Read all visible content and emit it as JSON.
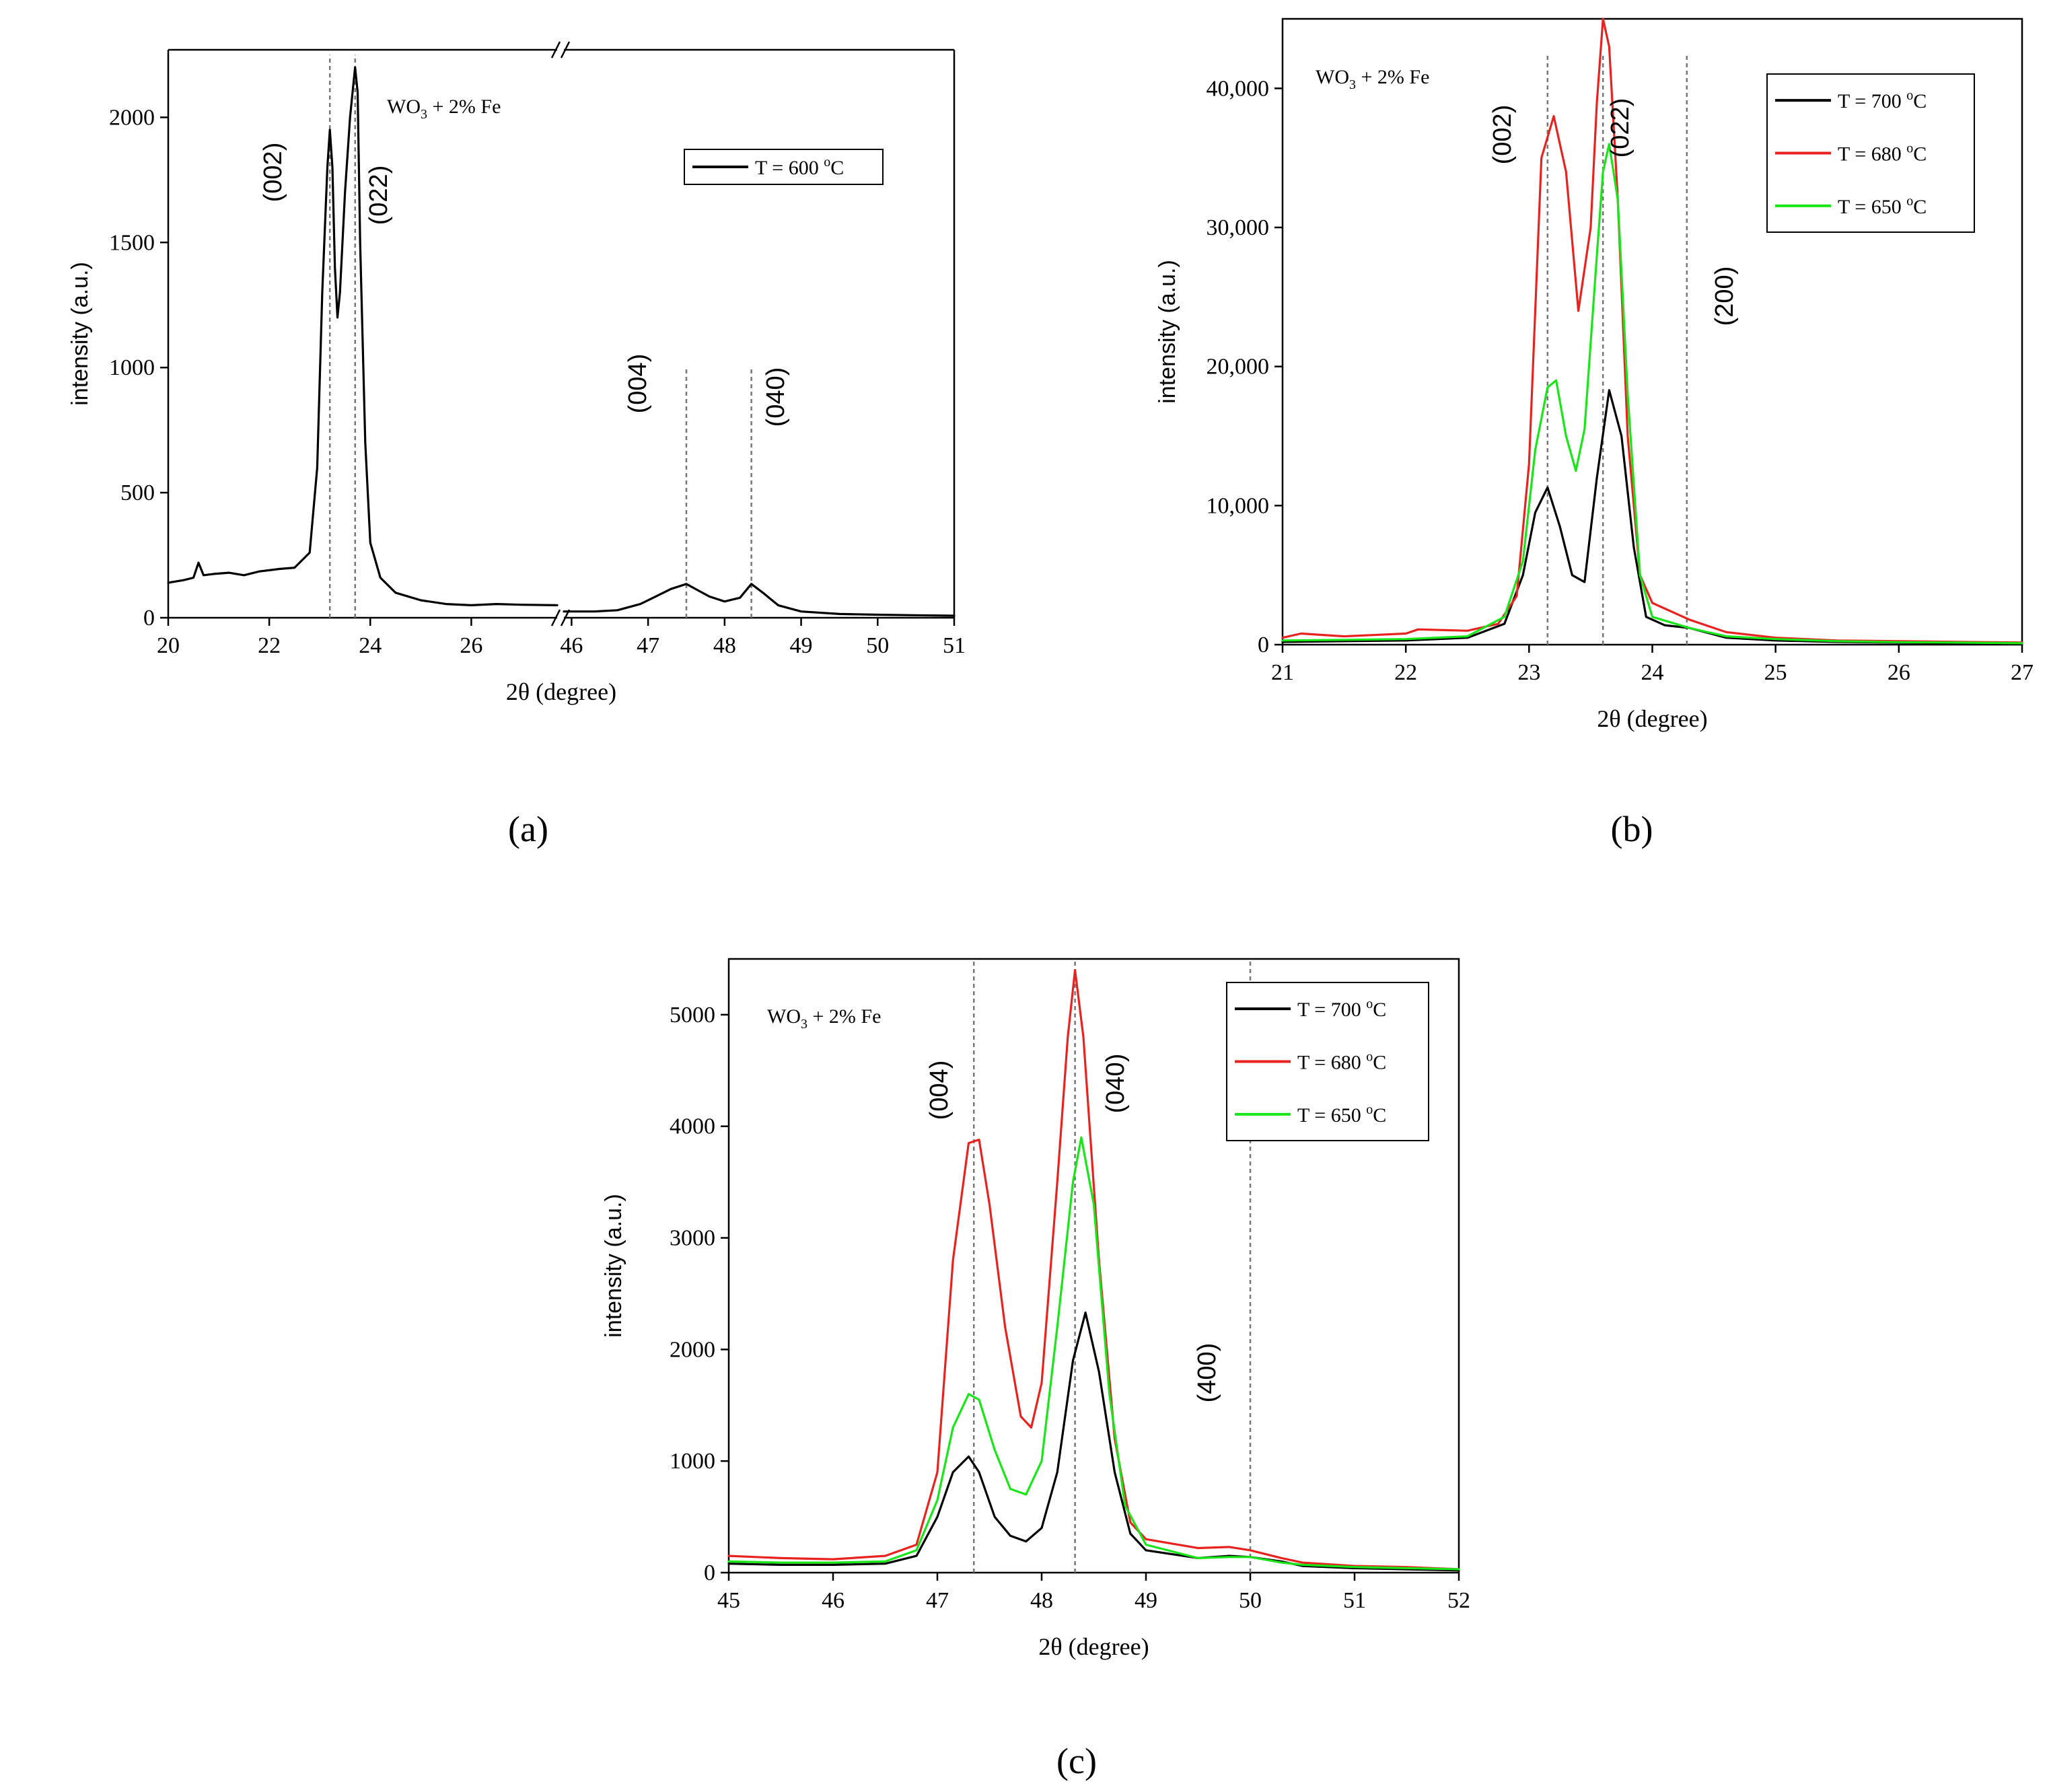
{
  "panel_labels": [
    "(a)",
    "(b)",
    "(c)"
  ],
  "colors": {
    "black": "#000000",
    "red": "#e8231f",
    "green": "#19e619",
    "ref": "#777777"
  },
  "chart_data": [
    {
      "id": "a",
      "type": "line",
      "title": "",
      "xlabel": "2θ (degree)",
      "ylabel": "intensity (a.u.)",
      "annotation": "WO3 + 2% Fe",
      "annotation_main": "WO",
      "annotation_sub": "3",
      "annotation_rest": " + 2% Fe",
      "broken_axis": true,
      "segments": [
        {
          "xlim": [
            20,
            27.7
          ],
          "ticks": [
            "20",
            "22",
            "24",
            "26"
          ],
          "tick_values": [
            20,
            22,
            24,
            26
          ]
        },
        {
          "xlim": [
            45.9,
            51
          ],
          "ticks": [
            "46",
            "47",
            "48",
            "49",
            "50",
            "51"
          ],
          "tick_values": [
            46,
            47,
            48,
            49,
            50,
            51
          ]
        }
      ],
      "ylim": [
        0,
        2270
      ],
      "yticks": [
        "0",
        "500",
        "1000",
        "1500",
        "2000"
      ],
      "ytick_values": [
        0,
        500,
        1000,
        1500,
        2000
      ],
      "legend": [
        {
          "label": "T = 600 °C",
          "main": "T = 600 ",
          "sup": "o",
          "unit": "C",
          "color": "#000000"
        }
      ],
      "reference_lines": [
        {
          "x": 23.2,
          "label": "(002)",
          "top": 2250
        },
        {
          "x": 23.7,
          "label": "(022)",
          "top": 2250
        },
        {
          "x": 47.5,
          "label": "(004)",
          "top": 1000
        },
        {
          "x": 48.35,
          "label": "(040)",
          "top": 1000
        }
      ],
      "series": [
        {
          "name": "T = 600 °C",
          "color": "#000000",
          "x": [
            20.0,
            20.3,
            20.5,
            20.6,
            20.7,
            20.9,
            21.2,
            21.5,
            21.8,
            22.0,
            22.2,
            22.5,
            22.8,
            22.95,
            23.05,
            23.15,
            23.2,
            23.25,
            23.3,
            23.35,
            23.4,
            23.5,
            23.6,
            23.7,
            23.75,
            23.8,
            23.9,
            24.0,
            24.2,
            24.5,
            25.0,
            25.5,
            26.0,
            26.5,
            27.0,
            27.7,
            45.9,
            46.3,
            46.6,
            46.9,
            47.1,
            47.3,
            47.5,
            47.65,
            47.8,
            48.0,
            48.2,
            48.35,
            48.5,
            48.7,
            49.0,
            49.5,
            50.0,
            50.5,
            51.0
          ],
          "y": [
            140,
            150,
            160,
            220,
            170,
            175,
            180,
            170,
            185,
            190,
            195,
            200,
            260,
            600,
            1300,
            1800,
            1950,
            1800,
            1400,
            1200,
            1300,
            1700,
            2000,
            2200,
            2100,
            1500,
            700,
            300,
            160,
            100,
            70,
            55,
            50,
            55,
            52,
            50,
            25,
            25,
            30,
            55,
            85,
            115,
            135,
            110,
            85,
            65,
            80,
            135,
            100,
            50,
            25,
            15,
            12,
            10,
            8
          ]
        }
      ]
    },
    {
      "id": "b",
      "type": "line",
      "title": "",
      "xlabel": "2θ (degree)",
      "ylabel": "intensity (a.u.)",
      "annotation": "WO3 + 2% Fe",
      "annotation_main": "WO",
      "annotation_sub": "3",
      "annotation_rest": " + 2% Fe",
      "xlim": [
        21,
        27
      ],
      "ylim": [
        0,
        45000
      ],
      "xticks": [
        "21",
        "22",
        "23",
        "24",
        "25",
        "26",
        "27"
      ],
      "xtick_values": [
        21,
        22,
        23,
        24,
        25,
        26,
        27
      ],
      "yticks": [
        "0",
        "10,000",
        "20,000",
        "30,000",
        "40,000"
      ],
      "ytick_values": [
        0,
        10000,
        20000,
        30000,
        40000
      ],
      "legend": [
        {
          "label": "T = 700 °C",
          "main": "T = 700 ",
          "sup": "o",
          "unit": "C",
          "color": "#000000"
        },
        {
          "label": "T = 680 °C",
          "main": "T = 680 ",
          "sup": "o",
          "unit": "C",
          "color": "#e8231f"
        },
        {
          "label": "T = 650 °C",
          "main": "T = 650 ",
          "sup": "o",
          "unit": "C",
          "color": "#19e619"
        }
      ],
      "reference_lines": [
        {
          "x": 23.15,
          "label": "(002)",
          "top": 42500
        },
        {
          "x": 23.6,
          "label": "(022)",
          "top": 42500
        },
        {
          "x": 24.28,
          "label": "(200)",
          "top": 42500
        }
      ],
      "series": [
        {
          "name": "T = 700 °C",
          "color": "#000000",
          "x": [
            21.0,
            21.5,
            22.0,
            22.5,
            22.8,
            22.95,
            23.05,
            23.15,
            23.25,
            23.35,
            23.45,
            23.55,
            23.65,
            23.75,
            23.85,
            23.95,
            24.1,
            24.3,
            24.6,
            25.0,
            25.5,
            26.0,
            26.5,
            27.0
          ],
          "y": [
            200,
            250,
            300,
            500,
            1500,
            5000,
            9500,
            11300,
            8500,
            5000,
            4500,
            12000,
            18300,
            15000,
            7000,
            2000,
            1400,
            1200,
            500,
            300,
            200,
            150,
            100,
            80
          ]
        },
        {
          "name": "T = 680 °C",
          "color": "#e8231f",
          "x": [
            21.0,
            21.15,
            21.5,
            22.0,
            22.1,
            22.5,
            22.75,
            22.9,
            23.0,
            23.1,
            23.2,
            23.3,
            23.4,
            23.5,
            23.55,
            23.6,
            23.65,
            23.72,
            23.8,
            23.9,
            24.0,
            24.3,
            24.6,
            25.0,
            25.5,
            26.0,
            26.5,
            27.0
          ],
          "y": [
            500,
            800,
            600,
            800,
            1100,
            1000,
            1500,
            3500,
            13000,
            35000,
            38000,
            34000,
            24000,
            30000,
            39000,
            45000,
            43000,
            32000,
            15000,
            5000,
            3000,
            1800,
            900,
            500,
            300,
            250,
            200,
            150
          ]
        },
        {
          "name": "T = 650 °C",
          "color": "#19e619",
          "x": [
            21.0,
            21.5,
            22.0,
            22.5,
            22.8,
            22.95,
            23.05,
            23.15,
            23.22,
            23.3,
            23.38,
            23.45,
            23.55,
            23.6,
            23.65,
            23.72,
            23.8,
            23.9,
            24.0,
            24.3,
            24.6,
            25.0,
            25.5,
            26.0,
            26.5,
            27.0
          ],
          "y": [
            300,
            350,
            400,
            600,
            2000,
            6000,
            14000,
            18500,
            19000,
            15000,
            12500,
            15500,
            28000,
            34000,
            36000,
            32000,
            18000,
            5000,
            2000,
            1200,
            600,
            400,
            250,
            180,
            150,
            100
          ]
        }
      ]
    },
    {
      "id": "c",
      "type": "line",
      "title": "",
      "xlabel": "2θ (degree)",
      "ylabel": "intensity (a.u.)",
      "annotation": "WO3 + 2% Fe",
      "annotation_main": "WO",
      "annotation_sub": "3",
      "annotation_rest": " + 2% Fe",
      "xlim": [
        45,
        52
      ],
      "ylim": [
        0,
        5500
      ],
      "xticks": [
        "45",
        "46",
        "47",
        "48",
        "49",
        "50",
        "51",
        "52"
      ],
      "xtick_values": [
        45,
        46,
        47,
        48,
        49,
        50,
        51,
        52
      ],
      "yticks": [
        "0",
        "1000",
        "2000",
        "3000",
        "4000",
        "5000"
      ],
      "ytick_values": [
        0,
        1000,
        2000,
        3000,
        4000,
        5000
      ],
      "legend": [
        {
          "label": "T = 700 °C",
          "main": "T = 700 ",
          "sup": "o",
          "unit": "C",
          "color": "#000000"
        },
        {
          "label": "T = 680 °C",
          "main": "T = 680 ",
          "sup": "o",
          "unit": "C",
          "color": "#e8231f"
        },
        {
          "label": "T = 650 °C",
          "main": "T = 650 ",
          "sup": "o",
          "unit": "C",
          "color": "#19e619"
        }
      ],
      "reference_lines": [
        {
          "x": 47.35,
          "label": "(004)",
          "top": 5500
        },
        {
          "x": 48.32,
          "label": "(040)",
          "top": 5500
        },
        {
          "x": 50.0,
          "label": "(400)",
          "top": 5500
        }
      ],
      "series": [
        {
          "name": "T = 700 °C",
          "color": "#000000",
          "x": [
            45.0,
            45.5,
            46.0,
            46.5,
            46.8,
            47.0,
            47.15,
            47.3,
            47.4,
            47.55,
            47.7,
            47.85,
            48.0,
            48.15,
            48.3,
            48.42,
            48.55,
            48.7,
            48.85,
            49.0,
            49.5,
            49.8,
            50.0,
            50.3,
            50.5,
            51.0,
            51.5,
            52.0
          ],
          "y": [
            80,
            70,
            70,
            80,
            150,
            500,
            900,
            1040,
            900,
            500,
            330,
            280,
            400,
            900,
            1900,
            2330,
            1800,
            900,
            350,
            200,
            130,
            150,
            140,
            100,
            60,
            40,
            30,
            20
          ]
        },
        {
          "name": "T = 680 °C",
          "color": "#e8231f",
          "x": [
            45.0,
            45.5,
            46.0,
            46.5,
            46.8,
            47.0,
            47.15,
            47.3,
            47.4,
            47.5,
            47.65,
            47.8,
            47.9,
            48.0,
            48.15,
            48.25,
            48.32,
            48.4,
            48.55,
            48.7,
            48.85,
            49.0,
            49.5,
            49.8,
            50.0,
            50.3,
            50.5,
            51.0,
            51.5,
            52.0
          ],
          "y": [
            150,
            130,
            120,
            150,
            250,
            900,
            2800,
            3850,
            3880,
            3300,
            2200,
            1400,
            1300,
            1700,
            3500,
            4800,
            5400,
            4800,
            2800,
            1200,
            450,
            300,
            220,
            230,
            200,
            130,
            90,
            60,
            50,
            30
          ]
        },
        {
          "name": "T = 650 °C",
          "color": "#19e619",
          "x": [
            45.0,
            45.5,
            46.0,
            46.5,
            46.8,
            47.0,
            47.15,
            47.3,
            47.4,
            47.55,
            47.7,
            47.85,
            48.0,
            48.15,
            48.3,
            48.38,
            48.5,
            48.65,
            48.8,
            49.0,
            49.5,
            49.8,
            50.0,
            50.3,
            50.5,
            51.0,
            51.5,
            52.0
          ],
          "y": [
            100,
            90,
            90,
            100,
            200,
            650,
            1300,
            1600,
            1550,
            1100,
            750,
            700,
            1000,
            2200,
            3500,
            3900,
            3300,
            1600,
            600,
            250,
            130,
            140,
            140,
            90,
            70,
            50,
            40,
            30
          ]
        }
      ]
    }
  ]
}
